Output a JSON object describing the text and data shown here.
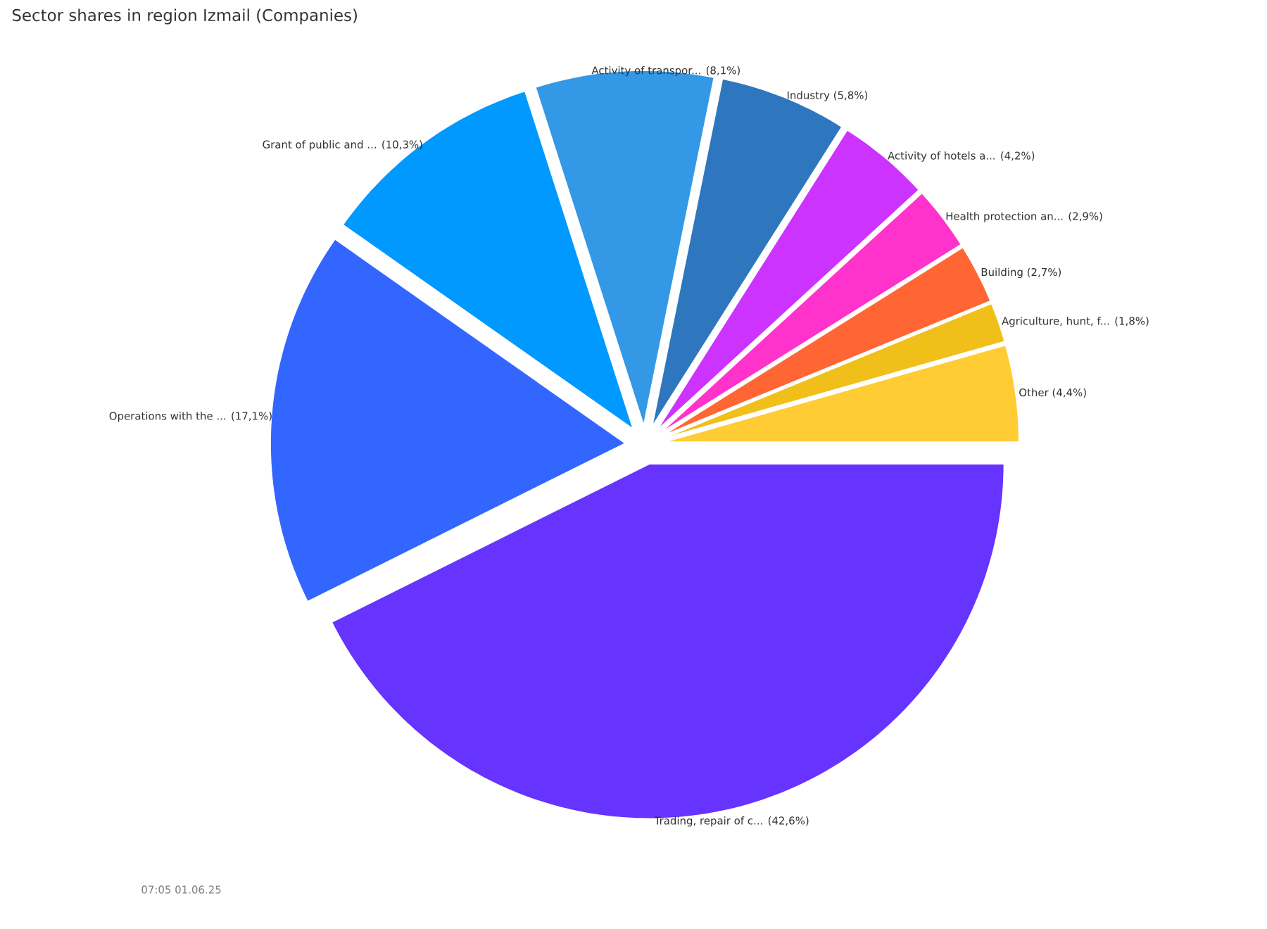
{
  "chart_data": {
    "type": "pie",
    "title": "Sector shares in region Izmail (Companies)",
    "categories": [
      "Trading, repair of c...",
      "Operations with the ...",
      "Grant of public and ...",
      "Activity of transpor...",
      "Industry",
      "Activity of hotels a...",
      "Health protection an...",
      "Building",
      "Agriculture, hunt, f...",
      "Other"
    ],
    "values": [
      42.6,
      17.1,
      10.3,
      8.1,
      5.8,
      4.2,
      2.9,
      2.7,
      1.8,
      4.4
    ],
    "colors": [
      "#6633ff",
      "#3366ff",
      "#0099ff",
      "#3399e6",
      "#2e77bf",
      "#cc33ff",
      "#ff33cc",
      "#ff6633",
      "#f0bf1a",
      "#ffcc33"
    ],
    "value_labels": [
      "(42,6%)",
      "(17,1%)",
      "(10,3%)",
      "(8,1%)",
      "(5,8%)",
      "(4,2%)",
      "(2,9%)",
      "(2,7%)",
      "(1,8%)",
      "(4,4%)"
    ],
    "annotations": [
      "07:05 01.06.25"
    ]
  }
}
